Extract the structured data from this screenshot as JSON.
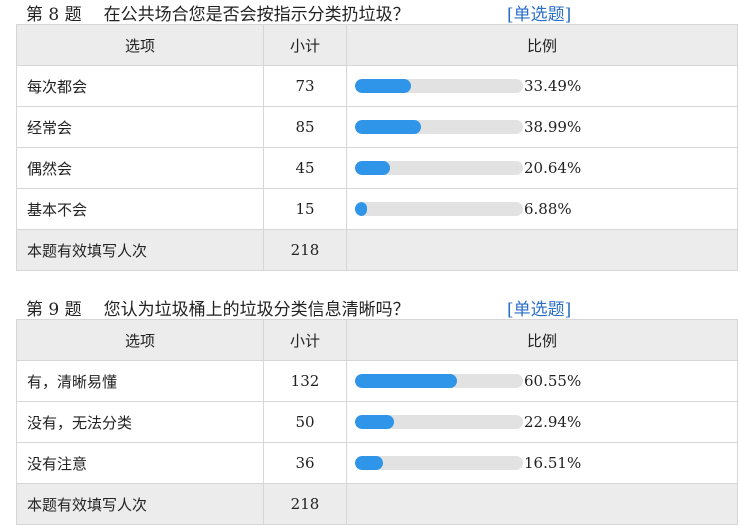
{
  "questions": [
    {
      "number": "第 8 题",
      "text": "在公共场合您是否会按指示分类扔垃圾？",
      "type": "[单选题]",
      "headers": {
        "option": "选项",
        "count": "小计",
        "ratio": "比例"
      },
      "rows": [
        {
          "option": "每次都会",
          "count": "73",
          "ratio": "33.49%",
          "fraction": 0.3349
        },
        {
          "option": "经常会",
          "count": "85",
          "ratio": "38.99%",
          "fraction": 0.3899
        },
        {
          "option": "偶然会",
          "count": "45",
          "ratio": "20.64%",
          "fraction": 0.2064
        },
        {
          "option": "基本不会",
          "count": "15",
          "ratio": "6.88%",
          "fraction": 0.0688
        }
      ],
      "total": {
        "label": "本题有效填写人次",
        "count": "218"
      }
    },
    {
      "number": "第 9 题",
      "text": "您认为垃圾桶上的垃圾分类信息清晰吗？",
      "type": "[单选题]",
      "headers": {
        "option": "选项",
        "count": "小计",
        "ratio": "比例"
      },
      "rows": [
        {
          "option": "有，清晰易懂",
          "count": "132",
          "ratio": "60.55%",
          "fraction": 0.6055
        },
        {
          "option": "没有，无法分类",
          "count": "50",
          "ratio": "22.94%",
          "fraction": 0.2294
        },
        {
          "option": "没有注意",
          "count": "36",
          "ratio": "16.51%",
          "fraction": 0.1651
        }
      ],
      "total": {
        "label": "本题有效填写人次",
        "count": "218"
      }
    }
  ],
  "colors": {
    "bar_fill": "#2f95e8",
    "bar_track": "#e2e2e2",
    "type_link": "#2b6fc7",
    "header_bg": "#ececec"
  }
}
